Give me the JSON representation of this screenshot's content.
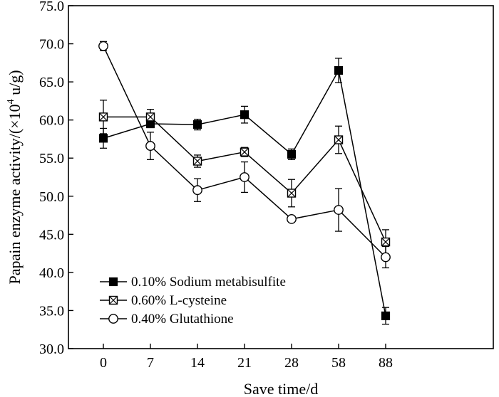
{
  "chart_data": {
    "type": "line",
    "xlabel": "Save time/d",
    "ylabel_prefix": "Papain enzyme activity/(×10",
    "ylabel_sup": "4",
    "ylabel_suffix": " u/g)",
    "categories": [
      "0",
      "7",
      "14",
      "21",
      "28",
      "58",
      "88"
    ],
    "ylim": [
      30.0,
      75.0
    ],
    "yticks": [
      "30.0",
      "35.0",
      "40.0",
      "45.0",
      "50.0",
      "55.0",
      "60.0",
      "65.0",
      "70.0",
      "75.0"
    ],
    "legend_position": "bottom-left",
    "series": [
      {
        "name": "0.10% Sodium metabisulfite",
        "marker": "filled-square",
        "values": [
          57.6,
          59.5,
          59.4,
          60.7,
          55.5,
          66.5,
          34.3
        ],
        "errors": [
          1.3,
          0.5,
          0.7,
          1.1,
          0.7,
          1.6,
          1.1
        ]
      },
      {
        "name": "0.60% L-cysteine",
        "marker": "crossed-square",
        "values": [
          60.4,
          60.4,
          54.6,
          55.8,
          50.4,
          57.4,
          44.0
        ],
        "errors": [
          2.2,
          1.0,
          0.8,
          0.6,
          1.8,
          1.8,
          1.6
        ]
      },
      {
        "name": "0.40% Glutathione",
        "marker": "open-circle",
        "values": [
          69.7,
          56.6,
          50.8,
          52.5,
          47.0,
          48.2,
          42.0
        ],
        "errors": [
          0.6,
          1.8,
          1.5,
          2.0,
          0.0,
          2.8,
          1.4
        ]
      }
    ]
  }
}
